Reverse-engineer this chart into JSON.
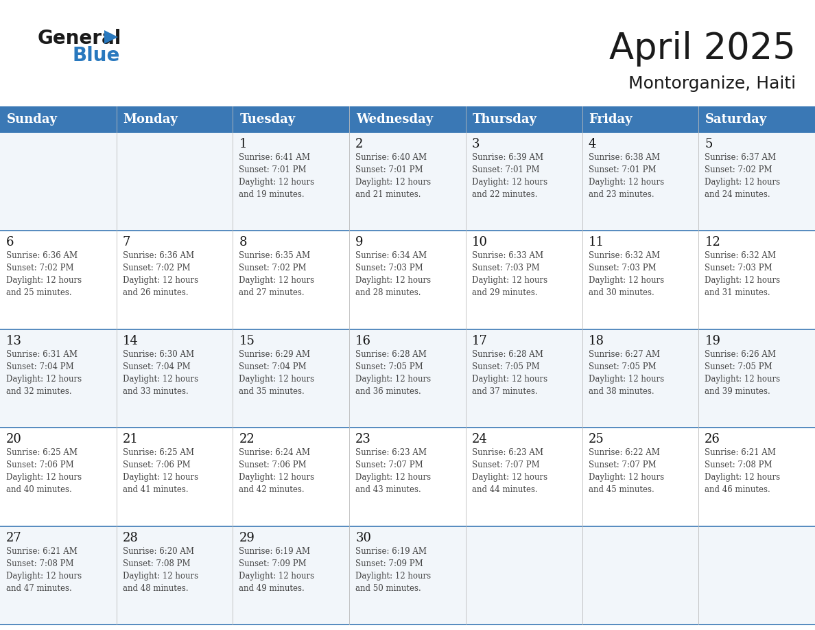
{
  "title": "April 2025",
  "subtitle": "Montorganize, Haiti",
  "days_of_week": [
    "Sunday",
    "Monday",
    "Tuesday",
    "Wednesday",
    "Thursday",
    "Friday",
    "Saturday"
  ],
  "header_bg": "#3A78B5",
  "header_text": "#FFFFFF",
  "row_bg_odd": "#FFFFFF",
  "row_bg_even": "#F0F4F8",
  "grid_line_color": "#3A78B5",
  "day_num_color": "#111111",
  "cell_text_color": "#444444",
  "logo_general_color": "#1a1a1a",
  "logo_blue_color": "#2878BE",
  "logo_triangle_color": "#2878BE",
  "calendar_data": [
    {
      "day": 1,
      "col": 2,
      "row": 0,
      "sunrise": "6:41 AM",
      "sunset": "7:01 PM",
      "daylight_min": 19
    },
    {
      "day": 2,
      "col": 3,
      "row": 0,
      "sunrise": "6:40 AM",
      "sunset": "7:01 PM",
      "daylight_min": 21
    },
    {
      "day": 3,
      "col": 4,
      "row": 0,
      "sunrise": "6:39 AM",
      "sunset": "7:01 PM",
      "daylight_min": 22
    },
    {
      "day": 4,
      "col": 5,
      "row": 0,
      "sunrise": "6:38 AM",
      "sunset": "7:01 PM",
      "daylight_min": 23
    },
    {
      "day": 5,
      "col": 6,
      "row": 0,
      "sunrise": "6:37 AM",
      "sunset": "7:02 PM",
      "daylight_min": 24
    },
    {
      "day": 6,
      "col": 0,
      "row": 1,
      "sunrise": "6:36 AM",
      "sunset": "7:02 PM",
      "daylight_min": 25
    },
    {
      "day": 7,
      "col": 1,
      "row": 1,
      "sunrise": "6:36 AM",
      "sunset": "7:02 PM",
      "daylight_min": 26
    },
    {
      "day": 8,
      "col": 2,
      "row": 1,
      "sunrise": "6:35 AM",
      "sunset": "7:02 PM",
      "daylight_min": 27
    },
    {
      "day": 9,
      "col": 3,
      "row": 1,
      "sunrise": "6:34 AM",
      "sunset": "7:03 PM",
      "daylight_min": 28
    },
    {
      "day": 10,
      "col": 4,
      "row": 1,
      "sunrise": "6:33 AM",
      "sunset": "7:03 PM",
      "daylight_min": 29
    },
    {
      "day": 11,
      "col": 5,
      "row": 1,
      "sunrise": "6:32 AM",
      "sunset": "7:03 PM",
      "daylight_min": 30
    },
    {
      "day": 12,
      "col": 6,
      "row": 1,
      "sunrise": "6:32 AM",
      "sunset": "7:03 PM",
      "daylight_min": 31
    },
    {
      "day": 13,
      "col": 0,
      "row": 2,
      "sunrise": "6:31 AM",
      "sunset": "7:04 PM",
      "daylight_min": 32
    },
    {
      "day": 14,
      "col": 1,
      "row": 2,
      "sunrise": "6:30 AM",
      "sunset": "7:04 PM",
      "daylight_min": 33
    },
    {
      "day": 15,
      "col": 2,
      "row": 2,
      "sunrise": "6:29 AM",
      "sunset": "7:04 PM",
      "daylight_min": 35
    },
    {
      "day": 16,
      "col": 3,
      "row": 2,
      "sunrise": "6:28 AM",
      "sunset": "7:05 PM",
      "daylight_min": 36
    },
    {
      "day": 17,
      "col": 4,
      "row": 2,
      "sunrise": "6:28 AM",
      "sunset": "7:05 PM",
      "daylight_min": 37
    },
    {
      "day": 18,
      "col": 5,
      "row": 2,
      "sunrise": "6:27 AM",
      "sunset": "7:05 PM",
      "daylight_min": 38
    },
    {
      "day": 19,
      "col": 6,
      "row": 2,
      "sunrise": "6:26 AM",
      "sunset": "7:05 PM",
      "daylight_min": 39
    },
    {
      "day": 20,
      "col": 0,
      "row": 3,
      "sunrise": "6:25 AM",
      "sunset": "7:06 PM",
      "daylight_min": 40
    },
    {
      "day": 21,
      "col": 1,
      "row": 3,
      "sunrise": "6:25 AM",
      "sunset": "7:06 PM",
      "daylight_min": 41
    },
    {
      "day": 22,
      "col": 2,
      "row": 3,
      "sunrise": "6:24 AM",
      "sunset": "7:06 PM",
      "daylight_min": 42
    },
    {
      "day": 23,
      "col": 3,
      "row": 3,
      "sunrise": "6:23 AM",
      "sunset": "7:07 PM",
      "daylight_min": 43
    },
    {
      "day": 24,
      "col": 4,
      "row": 3,
      "sunrise": "6:23 AM",
      "sunset": "7:07 PM",
      "daylight_min": 44
    },
    {
      "day": 25,
      "col": 5,
      "row": 3,
      "sunrise": "6:22 AM",
      "sunset": "7:07 PM",
      "daylight_min": 45
    },
    {
      "day": 26,
      "col": 6,
      "row": 3,
      "sunrise": "6:21 AM",
      "sunset": "7:08 PM",
      "daylight_min": 46
    },
    {
      "day": 27,
      "col": 0,
      "row": 4,
      "sunrise": "6:21 AM",
      "sunset": "7:08 PM",
      "daylight_min": 47
    },
    {
      "day": 28,
      "col": 1,
      "row": 4,
      "sunrise": "6:20 AM",
      "sunset": "7:08 PM",
      "daylight_min": 48
    },
    {
      "day": 29,
      "col": 2,
      "row": 4,
      "sunrise": "6:19 AM",
      "sunset": "7:09 PM",
      "daylight_min": 49
    },
    {
      "day": 30,
      "col": 3,
      "row": 4,
      "sunrise": "6:19 AM",
      "sunset": "7:09 PM",
      "daylight_min": 50
    }
  ]
}
